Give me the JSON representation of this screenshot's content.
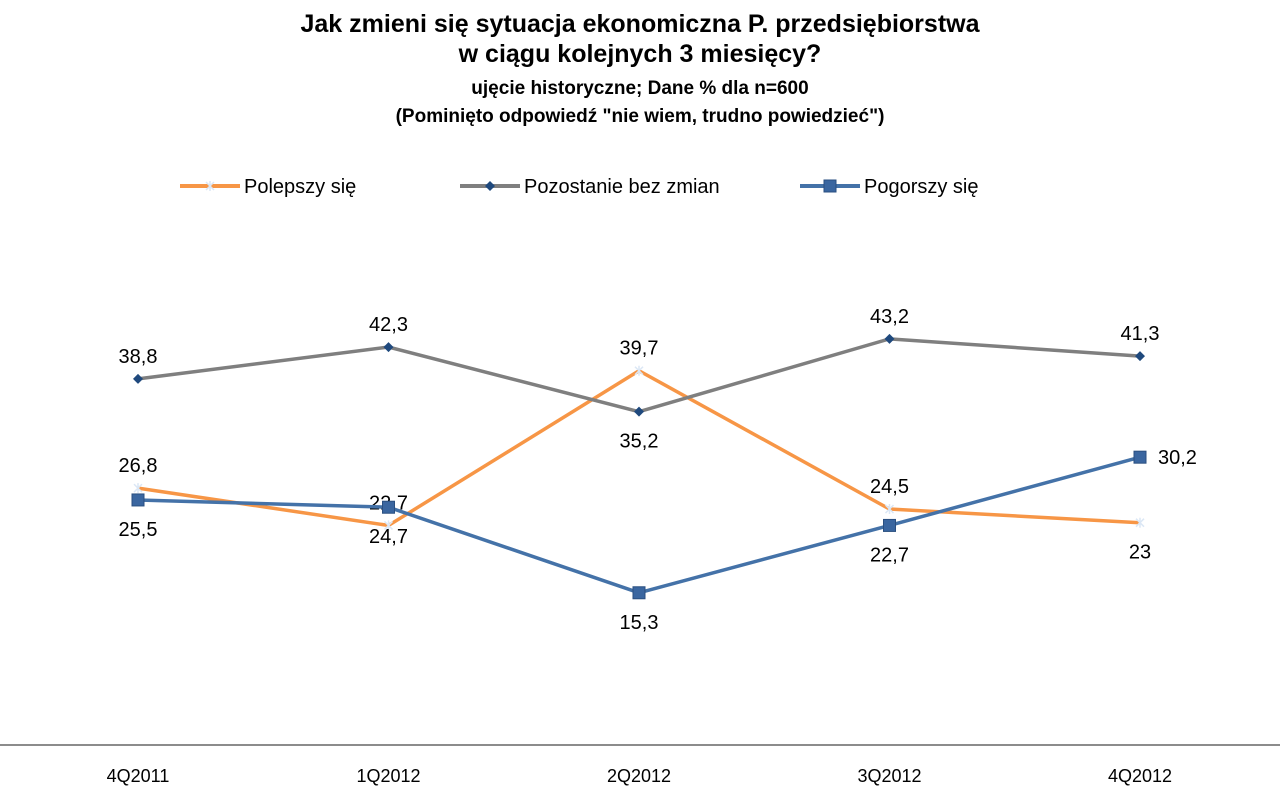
{
  "chart_data": {
    "type": "line",
    "title": "Jak zmieni się sytuacja ekonomiczna P. przedsiębiorstwa",
    "title_line2": "w ciągu kolejnych 3 miesięcy?",
    "subtitle": "ujęcie historyczne; Dane % dla  n=600",
    "note": "(Pominięto odpowiedź  \"nie wiem, trudno powiedzieć\")",
    "categories": [
      "4Q2011",
      "1Q2012",
      "2Q2012",
      "3Q2012",
      "4Q2012"
    ],
    "legend_position": "top",
    "grid": false,
    "ylim": [
      0,
      50
    ],
    "series": [
      {
        "name": "Polepszy się",
        "color": "#F79646",
        "marker": "star",
        "label_pos": [
          "above",
          "above",
          "above",
          "above",
          "below"
        ],
        "values": [
          26.8,
          22.7,
          39.7,
          24.5,
          23
        ],
        "labels": [
          "26,8",
          "22,7",
          "39,7",
          "24,5",
          "23"
        ]
      },
      {
        "name": "Pozostanie bez zmian",
        "color": "#7F7F7F",
        "marker": "diamond",
        "label_pos": [
          "above",
          "above",
          "below",
          "above",
          "above"
        ],
        "values": [
          38.8,
          42.3,
          35.2,
          43.2,
          41.3
        ],
        "labels": [
          "38,8",
          "42,3",
          "35,2",
          "43,2",
          "41,3"
        ]
      },
      {
        "name": "Pogorszy się",
        "color": "#4472A8",
        "marker": "square",
        "label_pos": [
          "below",
          "below",
          "below",
          "below",
          "right"
        ],
        "values": [
          25.5,
          24.7,
          15.3,
          22.7,
          30.2
        ],
        "labels": [
          "25,5",
          "24,7",
          "15,3",
          "22,7",
          "30,2"
        ]
      }
    ]
  }
}
